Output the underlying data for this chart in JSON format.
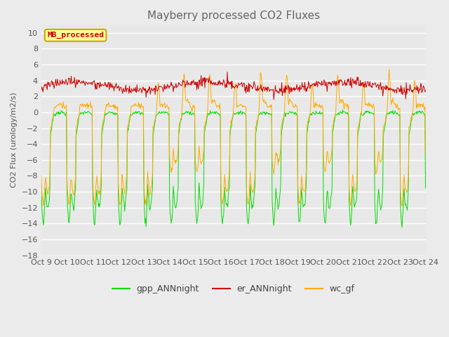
{
  "title": "Mayberry processed CO2 Fluxes",
  "ylabel": "CO2 Flux (urology/m2/s)",
  "ylim": [
    -18,
    11
  ],
  "yticks": [
    -18,
    -16,
    -14,
    -12,
    -10,
    -8,
    -6,
    -4,
    -2,
    0,
    2,
    4,
    6,
    8,
    10
  ],
  "background_color": "#ebebeb",
  "plot_bg_color": "#e8e8e8",
  "grid_color": "#ffffff",
  "colors": {
    "gpp": "#00dd00",
    "er": "#cc0000",
    "wc": "#ffaa00"
  },
  "legend_label": "MB_processed",
  "legend_box_facecolor": "#ffff99",
  "legend_box_edgecolor": "#ccaa00",
  "line_labels": [
    "gpp_ANNnight",
    "er_ANNnight",
    "wc_gf"
  ],
  "xtick_labels": [
    "Oct 9",
    "Oct 10",
    "Oct 11",
    "Oct 12",
    "Oct 13",
    "Oct 14",
    "Oct 15",
    "Oct 16",
    "Oct 17",
    "Oct 18",
    "Oct 19",
    "Oct 20",
    "Oct 21",
    "Oct 22",
    "Oct 23",
    "Oct 24"
  ],
  "figsize": [
    6.4,
    4.8
  ],
  "dpi": 100,
  "seed": 7
}
